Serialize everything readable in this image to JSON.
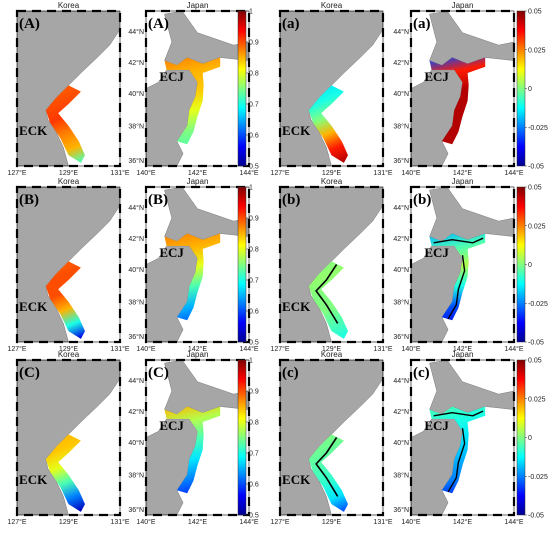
{
  "figure": {
    "panels": [
      {
        "id": "A1",
        "row": 0,
        "col": 0,
        "region": "korea",
        "title": "Korea",
        "label": "(A)",
        "region_label": "ECK",
        "metric": "similarity"
      },
      {
        "id": "A2",
        "row": 0,
        "col": 1,
        "region": "japan",
        "title": "Japan",
        "label": "(A)",
        "region_label": "ECJ",
        "metric": "similarity"
      },
      {
        "id": "a1",
        "row": 0,
        "col": 2,
        "region": "korea",
        "title": "Korea",
        "label": "(a)",
        "region_label": "ECK",
        "metric": "difference"
      },
      {
        "id": "a2",
        "row": 0,
        "col": 3,
        "region": "japan",
        "title": "Japan",
        "label": "(a)",
        "region_label": "ECJ",
        "metric": "difference"
      },
      {
        "id": "B1",
        "row": 1,
        "col": 0,
        "region": "korea",
        "title": "Korea",
        "label": "(B)",
        "region_label": "ECK",
        "metric": "similarity"
      },
      {
        "id": "B2",
        "row": 1,
        "col": 1,
        "region": "japan",
        "title": "Japan",
        "label": "(B)",
        "region_label": "ECJ",
        "metric": "similarity"
      },
      {
        "id": "b1",
        "row": 1,
        "col": 2,
        "region": "korea",
        "title": "Korea",
        "label": "(b)",
        "region_label": "ECK",
        "metric": "difference"
      },
      {
        "id": "b2",
        "row": 1,
        "col": 3,
        "region": "japan",
        "title": "Japan",
        "label": "(b)",
        "region_label": "ECJ",
        "metric": "difference"
      },
      {
        "id": "C1",
        "row": 2,
        "col": 0,
        "region": "korea",
        "title": "Korea",
        "label": "(C)",
        "region_label": "ECK",
        "metric": "similarity"
      },
      {
        "id": "C2",
        "row": 2,
        "col": 1,
        "region": "japan",
        "title": "Japan",
        "label": "(C)",
        "region_label": "ECJ",
        "metric": "similarity"
      },
      {
        "id": "c1",
        "row": 2,
        "col": 2,
        "region": "korea",
        "title": "Korea",
        "label": "(c)",
        "region_label": "ECK",
        "metric": "difference"
      },
      {
        "id": "c2",
        "row": 2,
        "col": 3,
        "region": "japan",
        "title": "Japan",
        "label": "(c)",
        "region_label": "ECJ",
        "metric": "difference"
      }
    ],
    "korea_x_ticks": [
      "127°E",
      "129°E",
      "131°E"
    ],
    "japan_x_ticks": [
      "140°E",
      "142°E",
      "144°E"
    ],
    "japan_y_ticks": [
      "44°N",
      "42°N",
      "40°N",
      "38°N",
      "36°N"
    ],
    "colorbar_similarity": {
      "min": 0.5,
      "max": 1,
      "ticks": [
        "1",
        "0.9",
        "0.8",
        "0.7",
        "0.6",
        "0.5"
      ]
    },
    "colorbar_difference": {
      "min": -0.05,
      "max": 0.05,
      "ticks": [
        "0.05",
        "0.025",
        "0",
        "-0.025",
        "-0.05"
      ]
    },
    "colors": {
      "land": "#a6a6a6",
      "sea": "#ffffff",
      "jet": [
        "#00008f",
        "#0000ff",
        "#0080ff",
        "#00ffff",
        "#80ff80",
        "#ffff00",
        "#ff8000",
        "#ff0000",
        "#800000"
      ]
    }
  }
}
